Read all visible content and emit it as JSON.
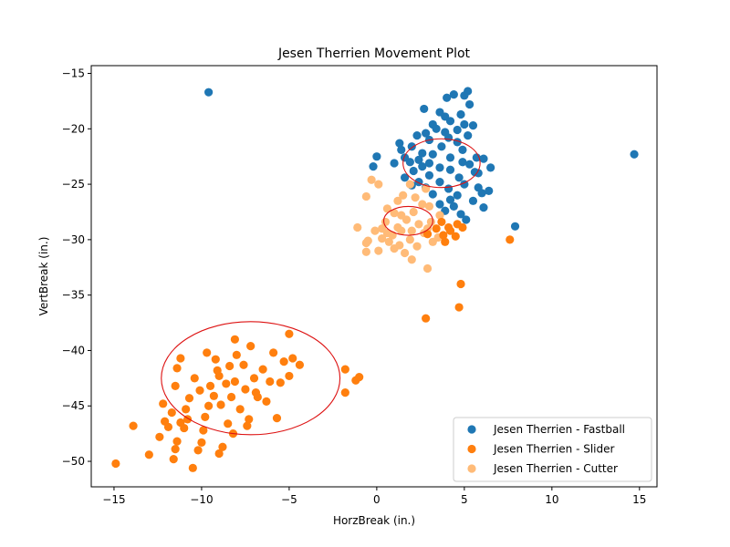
{
  "chart_data": {
    "type": "scatter",
    "title": "Jesen Therrien Movement Plot",
    "xlabel": "HorzBreak (in.)",
    "ylabel": "VertBreak (in.)",
    "xlim": [
      -16.3,
      16.0
    ],
    "ylim": [
      -52.3,
      -14.3
    ],
    "xticks": [
      -15,
      -10,
      -5,
      0,
      5,
      10,
      15
    ],
    "yticks": [
      -15,
      -20,
      -25,
      -30,
      -35,
      -40,
      -45,
      -50
    ],
    "xtick_labels": [
      "−15",
      "−10",
      "−5",
      "0",
      "5",
      "10",
      "15"
    ],
    "ytick_labels": [
      "−15",
      "−20",
      "−25",
      "−30",
      "−35",
      "−40",
      "−45",
      "−50"
    ],
    "grid": false,
    "legend_position": "lower-right",
    "series": [
      {
        "name": "Jesen Therrien - Fastball",
        "color": "#1f77b4",
        "points": [
          [
            -9.6,
            -16.7
          ],
          [
            14.7,
            -22.3
          ],
          [
            7.9,
            -28.8
          ],
          [
            5.2,
            -16.6
          ],
          [
            5.0,
            -17.0
          ],
          [
            4.4,
            -16.9
          ],
          [
            4.0,
            -17.2
          ],
          [
            2.7,
            -18.2
          ],
          [
            5.3,
            -17.8
          ],
          [
            4.8,
            -18.7
          ],
          [
            3.9,
            -18.9
          ],
          [
            3.6,
            -18.5
          ],
          [
            4.2,
            -19.3
          ],
          [
            3.2,
            -19.6
          ],
          [
            5.0,
            -19.6
          ],
          [
            5.5,
            -19.7
          ],
          [
            4.6,
            -20.1
          ],
          [
            3.9,
            -20.3
          ],
          [
            3.4,
            -20.0
          ],
          [
            2.8,
            -20.4
          ],
          [
            2.3,
            -20.6
          ],
          [
            4.1,
            -20.8
          ],
          [
            5.2,
            -20.6
          ],
          [
            3.0,
            -21.0
          ],
          [
            4.6,
            -21.2
          ],
          [
            1.3,
            -21.3
          ],
          [
            2.0,
            -21.6
          ],
          [
            3.7,
            -21.6
          ],
          [
            4.9,
            -21.9
          ],
          [
            1.4,
            -21.9
          ],
          [
            2.6,
            -22.2
          ],
          [
            3.2,
            -22.3
          ],
          [
            1.6,
            -22.6
          ],
          [
            2.4,
            -22.8
          ],
          [
            4.2,
            -22.6
          ],
          [
            5.7,
            -22.6
          ],
          [
            0.0,
            -22.5
          ],
          [
            6.1,
            -22.7
          ],
          [
            1.9,
            -23.0
          ],
          [
            3.0,
            -23.1
          ],
          [
            4.9,
            -23.0
          ],
          [
            5.3,
            -23.2
          ],
          [
            1.0,
            -23.1
          ],
          [
            -0.2,
            -23.4
          ],
          [
            2.6,
            -23.4
          ],
          [
            3.6,
            -23.5
          ],
          [
            6.5,
            -23.5
          ],
          [
            2.1,
            -23.8
          ],
          [
            4.2,
            -23.7
          ],
          [
            5.6,
            -23.9
          ],
          [
            5.8,
            -24.0
          ],
          [
            3.0,
            -24.2
          ],
          [
            1.6,
            -24.4
          ],
          [
            4.7,
            -24.4
          ],
          [
            2.4,
            -24.8
          ],
          [
            3.6,
            -24.8
          ],
          [
            2.0,
            -25.1
          ],
          [
            5.0,
            -25.0
          ],
          [
            2.8,
            -25.3
          ],
          [
            4.1,
            -25.4
          ],
          [
            5.8,
            -25.3
          ],
          [
            6.4,
            -25.6
          ],
          [
            6.0,
            -25.8
          ],
          [
            3.2,
            -25.9
          ],
          [
            4.6,
            -26.0
          ],
          [
            4.2,
            -26.4
          ],
          [
            5.5,
            -26.5
          ],
          [
            3.6,
            -26.8
          ],
          [
            4.4,
            -27.0
          ],
          [
            6.1,
            -27.1
          ],
          [
            3.9,
            -27.4
          ],
          [
            4.8,
            -27.7
          ],
          [
            5.1,
            -28.2
          ]
        ]
      },
      {
        "name": "Jesen Therrien - Slider",
        "color": "#ff7f0e",
        "points": [
          [
            -14.9,
            -50.2
          ],
          [
            -13.9,
            -46.8
          ],
          [
            -13.0,
            -49.4
          ],
          [
            -12.4,
            -47.8
          ],
          [
            -12.1,
            -46.4
          ],
          [
            -11.9,
            -46.9
          ],
          [
            -11.6,
            -49.8
          ],
          [
            -11.5,
            -48.9
          ],
          [
            -11.4,
            -48.2
          ],
          [
            -11.0,
            -47.0
          ],
          [
            -11.2,
            -46.5
          ],
          [
            -10.9,
            -45.3
          ],
          [
            -11.5,
            -43.2
          ],
          [
            -11.4,
            -41.6
          ],
          [
            -11.2,
            -40.7
          ],
          [
            -10.7,
            -44.3
          ],
          [
            -10.5,
            -50.6
          ],
          [
            -10.2,
            -49.0
          ],
          [
            -10.0,
            -48.3
          ],
          [
            -9.8,
            -46.0
          ],
          [
            -9.6,
            -45.0
          ],
          [
            -9.5,
            -43.2
          ],
          [
            -9.7,
            -40.2
          ],
          [
            -9.2,
            -40.8
          ],
          [
            -9.0,
            -42.3
          ],
          [
            -8.9,
            -44.9
          ],
          [
            -8.8,
            -48.7
          ],
          [
            -9.0,
            -49.3
          ],
          [
            -8.5,
            -46.6
          ],
          [
            -8.3,
            -44.2
          ],
          [
            -8.1,
            -42.8
          ],
          [
            -8.0,
            -40.4
          ],
          [
            -8.1,
            -39.0
          ],
          [
            -7.6,
            -41.3
          ],
          [
            -7.5,
            -43.5
          ],
          [
            -7.3,
            -46.2
          ],
          [
            -7.2,
            -39.6
          ],
          [
            -7.0,
            -42.5
          ],
          [
            -6.8,
            -44.2
          ],
          [
            -6.5,
            -41.7
          ],
          [
            -6.1,
            -42.8
          ],
          [
            -5.9,
            -40.2
          ],
          [
            -5.7,
            -46.1
          ],
          [
            -5.5,
            -42.9
          ],
          [
            -5.3,
            -41.0
          ],
          [
            -5.0,
            -42.3
          ],
          [
            -4.8,
            -40.7
          ],
          [
            -4.4,
            -41.3
          ],
          [
            -5.0,
            -38.5
          ],
          [
            -10.4,
            -42.5
          ],
          [
            -10.1,
            -43.6
          ],
          [
            -9.3,
            -44.1
          ],
          [
            -8.6,
            -43.0
          ],
          [
            -7.8,
            -45.3
          ],
          [
            -6.9,
            -43.8
          ],
          [
            -6.3,
            -44.6
          ],
          [
            -10.8,
            -46.2
          ],
          [
            -9.9,
            -47.2
          ],
          [
            -8.2,
            -47.5
          ],
          [
            -7.4,
            -46.8
          ],
          [
            -1.8,
            -41.7
          ],
          [
            -1.2,
            -42.7
          ],
          [
            -1.0,
            -42.4
          ],
          [
            -1.8,
            -43.8
          ],
          [
            -12.2,
            -44.8
          ],
          [
            -11.7,
            -45.6
          ],
          [
            -9.1,
            -41.8
          ],
          [
            -8.4,
            -41.4
          ]
        ]
      },
      {
        "name": "Jesen Therrien - Cutter",
        "color": "#ffbb78",
        "points": [
          [
            -0.6,
            -26.1
          ],
          [
            -0.3,
            -24.6
          ],
          [
            0.1,
            -25.0
          ],
          [
            1.2,
            -26.5
          ],
          [
            0.6,
            -27.2
          ],
          [
            1.4,
            -27.8
          ],
          [
            -0.1,
            -29.2
          ],
          [
            -1.1,
            -28.9
          ],
          [
            0.3,
            -29.0
          ],
          [
            0.6,
            -29.4
          ],
          [
            -0.5,
            -30.1
          ],
          [
            -0.6,
            -30.3
          ],
          [
            -0.6,
            -31.1
          ],
          [
            0.1,
            -31.0
          ],
          [
            0.3,
            -29.9
          ],
          [
            0.7,
            -30.2
          ],
          [
            1.0,
            -30.8
          ],
          [
            1.3,
            -30.5
          ],
          [
            1.6,
            -31.2
          ],
          [
            2.0,
            -31.8
          ],
          [
            2.9,
            -32.6
          ],
          [
            3.5,
            -29.8
          ],
          [
            3.0,
            -27.0
          ],
          [
            2.2,
            -26.2
          ],
          [
            2.8,
            -25.4
          ],
          [
            1.9,
            -25.0
          ],
          [
            1.5,
            -26.0
          ],
          [
            2.6,
            -26.8
          ],
          [
            2.1,
            -27.5
          ],
          [
            1.7,
            -28.2
          ],
          [
            2.4,
            -28.6
          ],
          [
            3.1,
            -28.4
          ],
          [
            1.2,
            -28.9
          ],
          [
            2.7,
            -29.4
          ],
          [
            0.9,
            -29.6
          ],
          [
            1.9,
            -30.0
          ],
          [
            3.2,
            -30.2
          ],
          [
            2.3,
            -30.6
          ],
          [
            1.4,
            -29.2
          ],
          [
            2.9,
            -29.0
          ],
          [
            3.6,
            -27.8
          ],
          [
            1.0,
            -27.6
          ],
          [
            0.5,
            -28.4
          ],
          [
            2.0,
            -29.2
          ]
        ]
      },
      {
        "name": "Jesen Therrien - Slider",
        "color": "#ff7f0e",
        "points": [
          [
            7.6,
            -30.0
          ],
          [
            4.8,
            -34.0
          ],
          [
            4.7,
            -36.1
          ],
          [
            2.8,
            -37.1
          ],
          [
            4.2,
            -29.2
          ],
          [
            3.8,
            -29.6
          ],
          [
            4.6,
            -28.6
          ],
          [
            4.9,
            -28.9
          ],
          [
            3.4,
            -29.0
          ],
          [
            4.1,
            -28.9
          ],
          [
            3.9,
            -30.2
          ],
          [
            4.5,
            -29.7
          ],
          [
            3.7,
            -28.4
          ],
          [
            2.9,
            -29.5
          ]
        ]
      }
    ],
    "ellipses": [
      {
        "color": "#dd1111",
        "cx": 3.7,
        "cy": -23.1,
        "rx": 2.2,
        "ry": 2.2
      },
      {
        "color": "#dd1111",
        "cx": 1.8,
        "cy": -28.3,
        "rx": 1.4,
        "ry": 1.3
      },
      {
        "color": "#dd1111",
        "cx": -7.2,
        "cy": -42.5,
        "rx": 5.1,
        "ry": 5.1
      }
    ],
    "legend": [
      {
        "label": "Jesen Therrien - Fastball",
        "color": "#1f77b4"
      },
      {
        "label": "Jesen Therrien - Slider",
        "color": "#ff7f0e"
      },
      {
        "label": "Jesen Therrien - Cutter",
        "color": "#ffbb78"
      }
    ]
  }
}
